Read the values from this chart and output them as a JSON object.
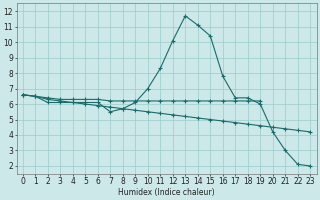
{
  "xlabel": "Humidex (Indice chaleur)",
  "bg_color": "#cce8e8",
  "grid_color": "#99cccc",
  "line_color": "#1a6b6b",
  "xlim": [
    -0.5,
    23.5
  ],
  "ylim": [
    1.5,
    12.5
  ],
  "xticks": [
    0,
    1,
    2,
    3,
    4,
    5,
    6,
    7,
    8,
    9,
    10,
    11,
    12,
    13,
    14,
    15,
    16,
    17,
    18,
    19,
    20,
    21,
    22,
    23
  ],
  "yticks": [
    2,
    3,
    4,
    5,
    6,
    7,
    8,
    9,
    10,
    11,
    12
  ],
  "series1_x": [
    0,
    1,
    2,
    3,
    4,
    5,
    6,
    7,
    8,
    9,
    10,
    11,
    12,
    13,
    14,
    15,
    16,
    17,
    18,
    19,
    20,
    21,
    22,
    23
  ],
  "series1_y": [
    6.6,
    6.5,
    6.1,
    6.1,
    6.1,
    6.1,
    6.1,
    5.5,
    5.7,
    6.1,
    7.0,
    8.3,
    10.1,
    11.7,
    11.1,
    10.4,
    7.8,
    6.4,
    6.4,
    6.0,
    4.2,
    3.0,
    2.1,
    2.0
  ],
  "series2_x": [
    0,
    1,
    2,
    3,
    4,
    5,
    6,
    7,
    8,
    9,
    10,
    11,
    12,
    13,
    14,
    15,
    16,
    17,
    18,
    19,
    20,
    21,
    22,
    23
  ],
  "series2_y": [
    6.6,
    6.5,
    6.3,
    6.2,
    6.1,
    6.0,
    5.9,
    5.8,
    5.7,
    5.6,
    5.5,
    5.4,
    5.3,
    5.2,
    5.1,
    5.0,
    4.9,
    4.8,
    4.7,
    4.6,
    4.5,
    4.4,
    4.3,
    4.2
  ],
  "series3_x": [
    0,
    1,
    2,
    3,
    4,
    5,
    6,
    7,
    8,
    9,
    10,
    11,
    12,
    13,
    14,
    15,
    16,
    17,
    18,
    19
  ],
  "series3_y": [
    6.6,
    6.5,
    6.4,
    6.3,
    6.3,
    6.3,
    6.3,
    6.2,
    6.2,
    6.2,
    6.2,
    6.2,
    6.2,
    6.2,
    6.2,
    6.2,
    6.2,
    6.2,
    6.2,
    6.2
  ]
}
